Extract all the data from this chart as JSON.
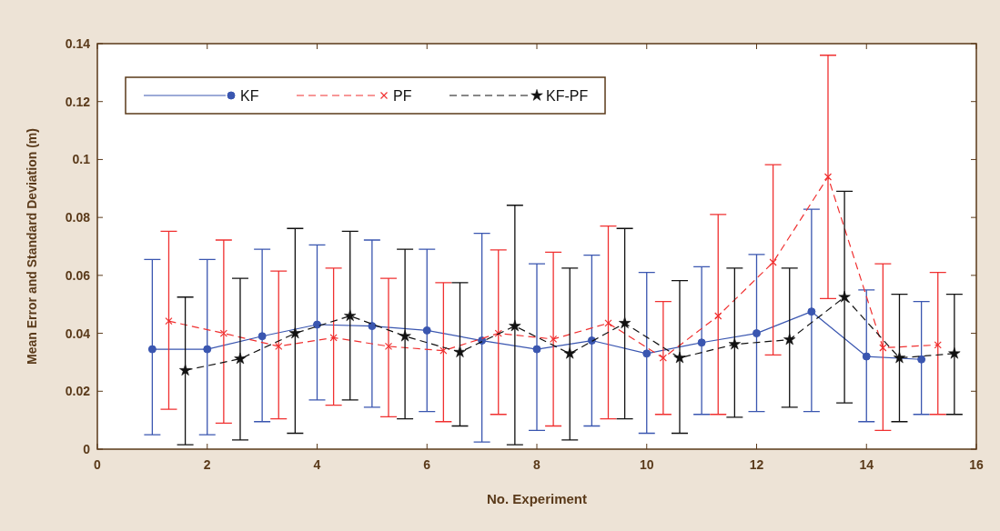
{
  "chart_data": {
    "type": "line",
    "xlabel": "No. Experiment",
    "ylabel": "Mean Error and Standard Deviation (m)",
    "xlim": [
      0,
      16
    ],
    "xticks": [
      0,
      2,
      4,
      6,
      8,
      10,
      12,
      14,
      16
    ],
    "ylim": [
      0,
      0.14
    ],
    "yticks": [
      0,
      0.02,
      0.04,
      0.06,
      0.08,
      0.1,
      0.12,
      0.14
    ],
    "grid": false,
    "legend": "top left",
    "series": [
      {
        "name": "KF",
        "color": "#3a56b0",
        "marker": "circle",
        "line_style": "solid",
        "x": [
          1,
          2,
          3,
          4,
          5,
          6,
          7,
          8,
          9,
          10,
          11,
          12,
          13,
          14,
          15
        ],
        "values": [
          0.0345,
          0.0345,
          0.039,
          0.043,
          0.0425,
          0.041,
          0.0375,
          0.0345,
          0.0375,
          0.033,
          0.0368,
          0.04,
          0.0475,
          0.032,
          0.031
        ],
        "errors": [
          [
            0.005,
            0.0655
          ],
          [
            0.005,
            0.0655
          ],
          [
            0.0095,
            0.069
          ],
          [
            0.017,
            0.0705
          ],
          [
            0.0145,
            0.0722
          ],
          [
            0.013,
            0.069
          ],
          [
            0.0025,
            0.0745
          ],
          [
            0.0065,
            0.064
          ],
          [
            0.008,
            0.067
          ],
          [
            0.0055,
            0.061
          ],
          [
            0.012,
            0.063
          ],
          [
            0.013,
            0.0672
          ],
          [
            0.013,
            0.0828
          ],
          [
            0.0095,
            0.055
          ],
          [
            0.012,
            0.051
          ]
        ]
      },
      {
        "name": "PF",
        "color": "#f03030",
        "marker": "cross",
        "line_style": "dashed",
        "x": [
          1.3,
          2.3,
          3.3,
          4.3,
          5.3,
          6.3,
          7.3,
          8.3,
          9.3,
          10.3,
          11.3,
          12.3,
          13.3,
          14.3,
          15.3
        ],
        "values": [
          0.0442,
          0.04,
          0.0355,
          0.0385,
          0.0355,
          0.034,
          0.04,
          0.038,
          0.0435,
          0.0315,
          0.046,
          0.0645,
          0.094,
          0.035,
          0.036
        ],
        "errors": [
          [
            0.0138,
            0.0752
          ],
          [
            0.009,
            0.0722
          ],
          [
            0.0105,
            0.0615
          ],
          [
            0.0152,
            0.0625
          ],
          [
            0.0112,
            0.059
          ],
          [
            0.0095,
            0.0575
          ],
          [
            0.012,
            0.0688
          ],
          [
            0.008,
            0.068
          ],
          [
            0.0105,
            0.077
          ],
          [
            0.012,
            0.051
          ],
          [
            0.012,
            0.081
          ],
          [
            0.0325,
            0.0982
          ],
          [
            0.052,
            0.136
          ],
          [
            0.0065,
            0.064
          ],
          [
            0.012,
            0.061
          ]
        ]
      },
      {
        "name": "KF-PF",
        "color": "#111111",
        "marker": "star",
        "line_style": "dashed",
        "x": [
          1.6,
          2.6,
          3.6,
          4.6,
          5.6,
          6.6,
          7.6,
          8.6,
          9.6,
          10.6,
          11.6,
          12.6,
          13.6,
          14.6,
          15.6
        ],
        "values": [
          0.0272,
          0.0312,
          0.04,
          0.046,
          0.039,
          0.0335,
          0.0425,
          0.033,
          0.0435,
          0.0315,
          0.0362,
          0.0378,
          0.0525,
          0.0315,
          0.033
        ],
        "errors": [
          [
            0.0015,
            0.0525
          ],
          [
            0.0032,
            0.059
          ],
          [
            0.0055,
            0.0762
          ],
          [
            0.017,
            0.0752
          ],
          [
            0.0105,
            0.069
          ],
          [
            0.008,
            0.0575
          ],
          [
            0.0015,
            0.0842
          ],
          [
            0.0032,
            0.0625
          ],
          [
            0.0105,
            0.0762
          ],
          [
            0.0055,
            0.0582
          ],
          [
            0.011,
            0.0625
          ],
          [
            0.0145,
            0.0625
          ],
          [
            0.016,
            0.089
          ],
          [
            0.0095,
            0.0535
          ],
          [
            0.012,
            0.0535
          ]
        ]
      }
    ]
  }
}
